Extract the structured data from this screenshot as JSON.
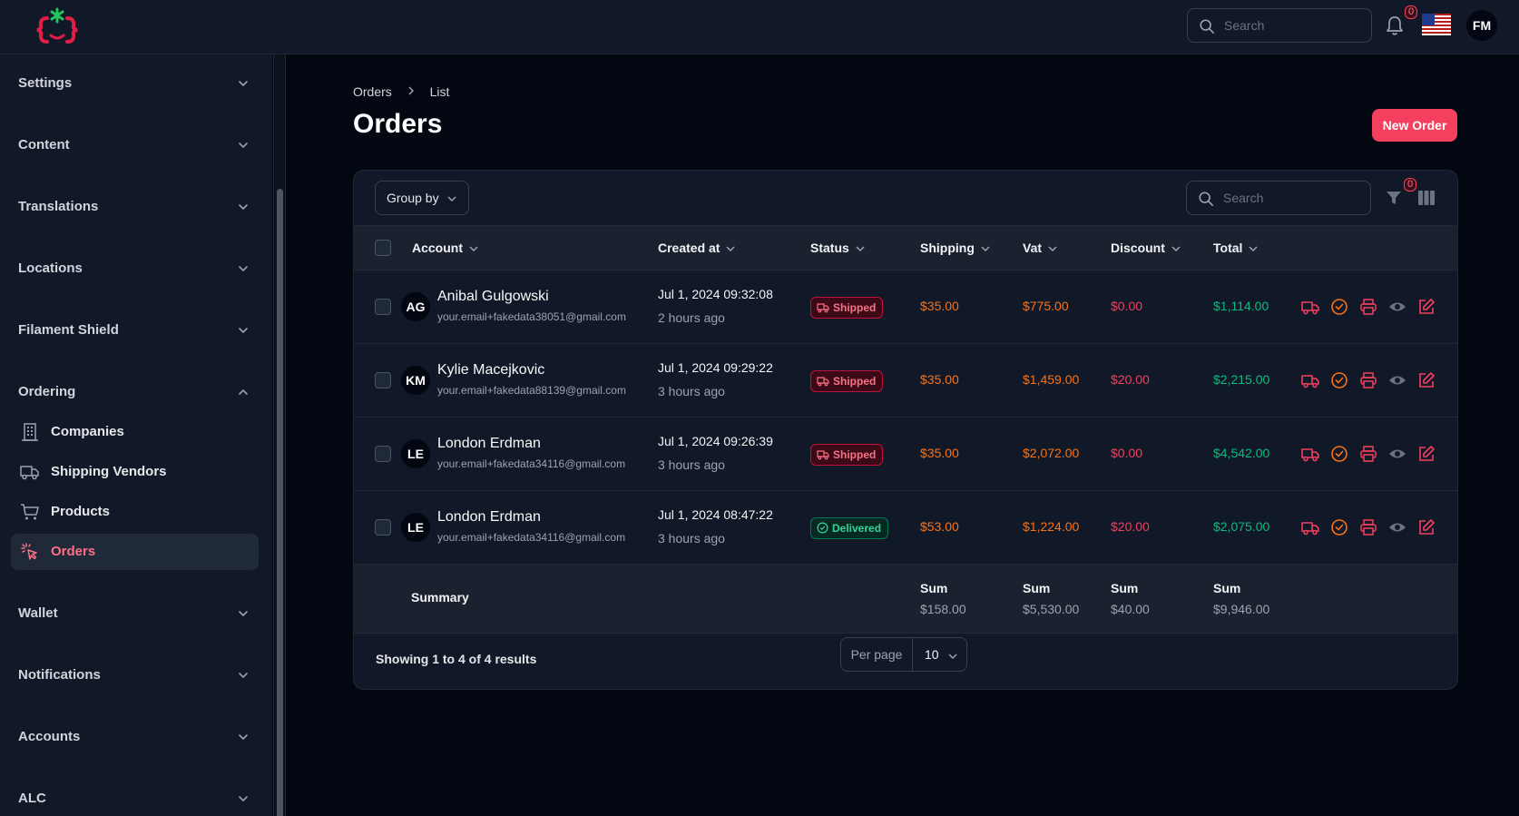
{
  "header": {
    "search_placeholder": "Search",
    "notifications_count": "0",
    "user_initials": "FM",
    "accent_color": "#f43f5e"
  },
  "sidebar": {
    "groups": [
      {
        "label": "Settings",
        "expanded": false
      },
      {
        "label": "Content",
        "expanded": false
      },
      {
        "label": "Translations",
        "expanded": false
      },
      {
        "label": "Locations",
        "expanded": false
      },
      {
        "label": "Filament Shield",
        "expanded": false
      },
      {
        "label": "Ordering",
        "expanded": true
      },
      {
        "label": "Wallet",
        "expanded": false
      },
      {
        "label": "Notifications",
        "expanded": false
      },
      {
        "label": "Accounts",
        "expanded": false
      },
      {
        "label": "ALC",
        "expanded": false
      }
    ],
    "ordering_items": [
      {
        "label": "Companies",
        "icon": "building-icon",
        "active": false
      },
      {
        "label": "Shipping Vendors",
        "icon": "truck-icon",
        "active": false
      },
      {
        "label": "Products",
        "icon": "cart-icon",
        "active": false
      },
      {
        "label": "Orders",
        "icon": "cursor-click-icon",
        "active": true
      }
    ]
  },
  "page": {
    "breadcrumb": [
      "Orders",
      "List"
    ],
    "title": "Orders",
    "new_button": "New Order"
  },
  "table": {
    "group_by_label": "Group by",
    "search_placeholder": "Search",
    "filter_count": "0",
    "columns": [
      "Account",
      "Created at",
      "Status",
      "Shipping",
      "Vat",
      "Discount",
      "Total"
    ],
    "rows": [
      {
        "initials": "AG",
        "name": "Anibal Gulgowski",
        "email": "your.email+fakedata38051@gmail.com",
        "created": "Jul 1, 2024 09:32:08",
        "ago": "2 hours ago",
        "status": "Shipped",
        "shipping": "$35.00",
        "vat": "$775.00",
        "discount": "$0.00",
        "total": "$1,114.00"
      },
      {
        "initials": "KM",
        "name": "Kylie Macejkovic",
        "email": "your.email+fakedata88139@gmail.com",
        "created": "Jul 1, 2024 09:29:22",
        "ago": "3 hours ago",
        "status": "Shipped",
        "shipping": "$35.00",
        "vat": "$1,459.00",
        "discount": "$20.00",
        "total": "$2,215.00"
      },
      {
        "initials": "LE",
        "name": "London Erdman",
        "email": "your.email+fakedata34116@gmail.com",
        "created": "Jul 1, 2024 09:26:39",
        "ago": "3 hours ago",
        "status": "Shipped",
        "shipping": "$35.00",
        "vat": "$2,072.00",
        "discount": "$0.00",
        "total": "$4,542.00"
      },
      {
        "initials": "LE",
        "name": "London Erdman",
        "email": "your.email+fakedata34116@gmail.com",
        "created": "Jul 1, 2024 08:47:22",
        "ago": "3 hours ago",
        "status": "Delivered",
        "shipping": "$53.00",
        "vat": "$1,224.00",
        "discount": "$20.00",
        "total": "$2,075.00"
      }
    ],
    "summary": {
      "label": "Summary",
      "sum_label": "Sum",
      "shipping": "$158.00",
      "vat": "$5,530.00",
      "discount": "$40.00",
      "total": "$9,946.00"
    },
    "footer": {
      "showing": "Showing 1 to 4 of 4 results",
      "per_page_label": "Per page",
      "per_page_value": "10"
    },
    "row_actions": [
      "truck-icon",
      "check-circle-icon",
      "printer-icon",
      "eye-icon",
      "edit-icon"
    ]
  }
}
